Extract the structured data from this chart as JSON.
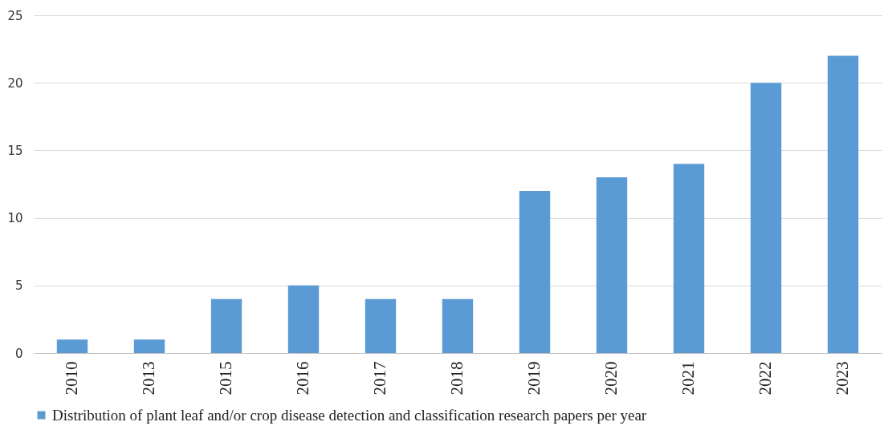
{
  "chart_data": {
    "type": "bar",
    "categories": [
      "2010",
      "2013",
      "2015",
      "2016",
      "2017",
      "2018",
      "2019",
      "2020",
      "2021",
      "2022",
      "2023"
    ],
    "series": [
      {
        "name": "Distribution of plant leaf and/or crop disease detection and classification research papers per year",
        "color": "#5b9bd5",
        "values": [
          1,
          1,
          4,
          5,
          4,
          4,
          12,
          13,
          14,
          20,
          22
        ]
      }
    ],
    "ylim": [
      0,
      25
    ],
    "yticks": [
      0,
      5,
      10,
      15,
      20,
      25
    ],
    "grid": "y",
    "legend": "bottom"
  }
}
